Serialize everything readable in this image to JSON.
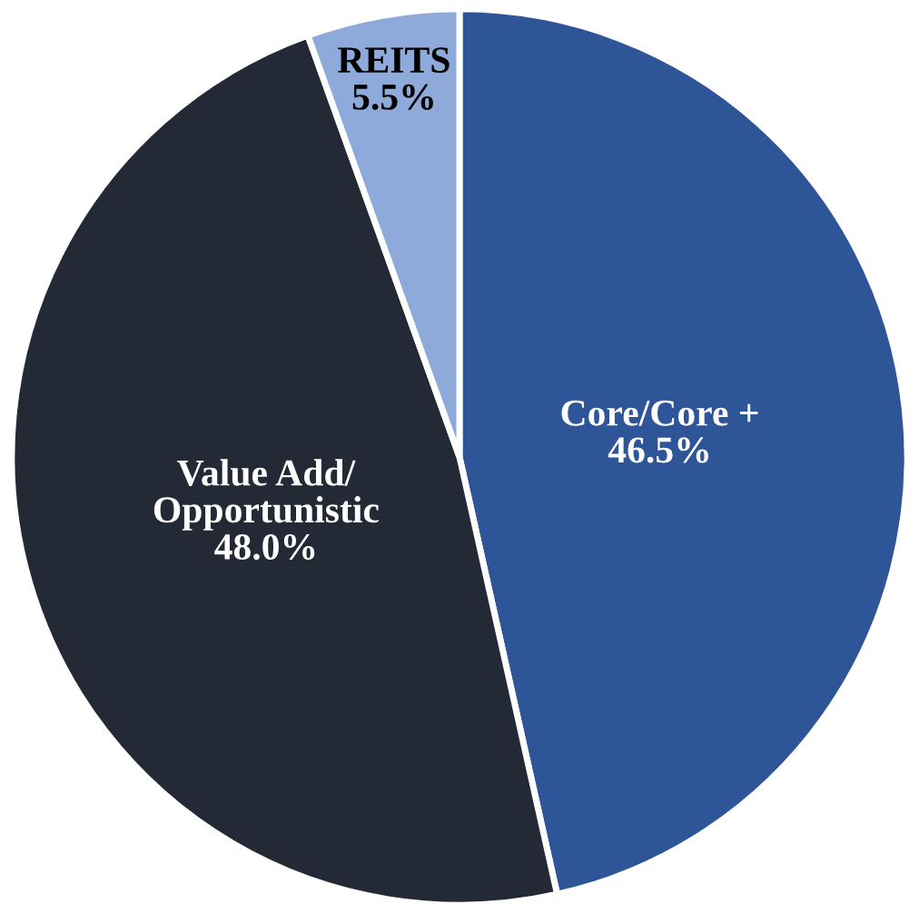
{
  "chart_data": {
    "type": "pie",
    "categories": [
      "Core/Core +",
      "Value Add/\nOpportunistic",
      "REITS"
    ],
    "values": [
      46.5,
      48.0,
      5.5
    ],
    "colors": [
      "#2e5597",
      "#232a35",
      "#8eaadb"
    ],
    "value_labels": [
      "46.5%",
      "48.0%",
      "5.5%"
    ],
    "legend": false
  }
}
